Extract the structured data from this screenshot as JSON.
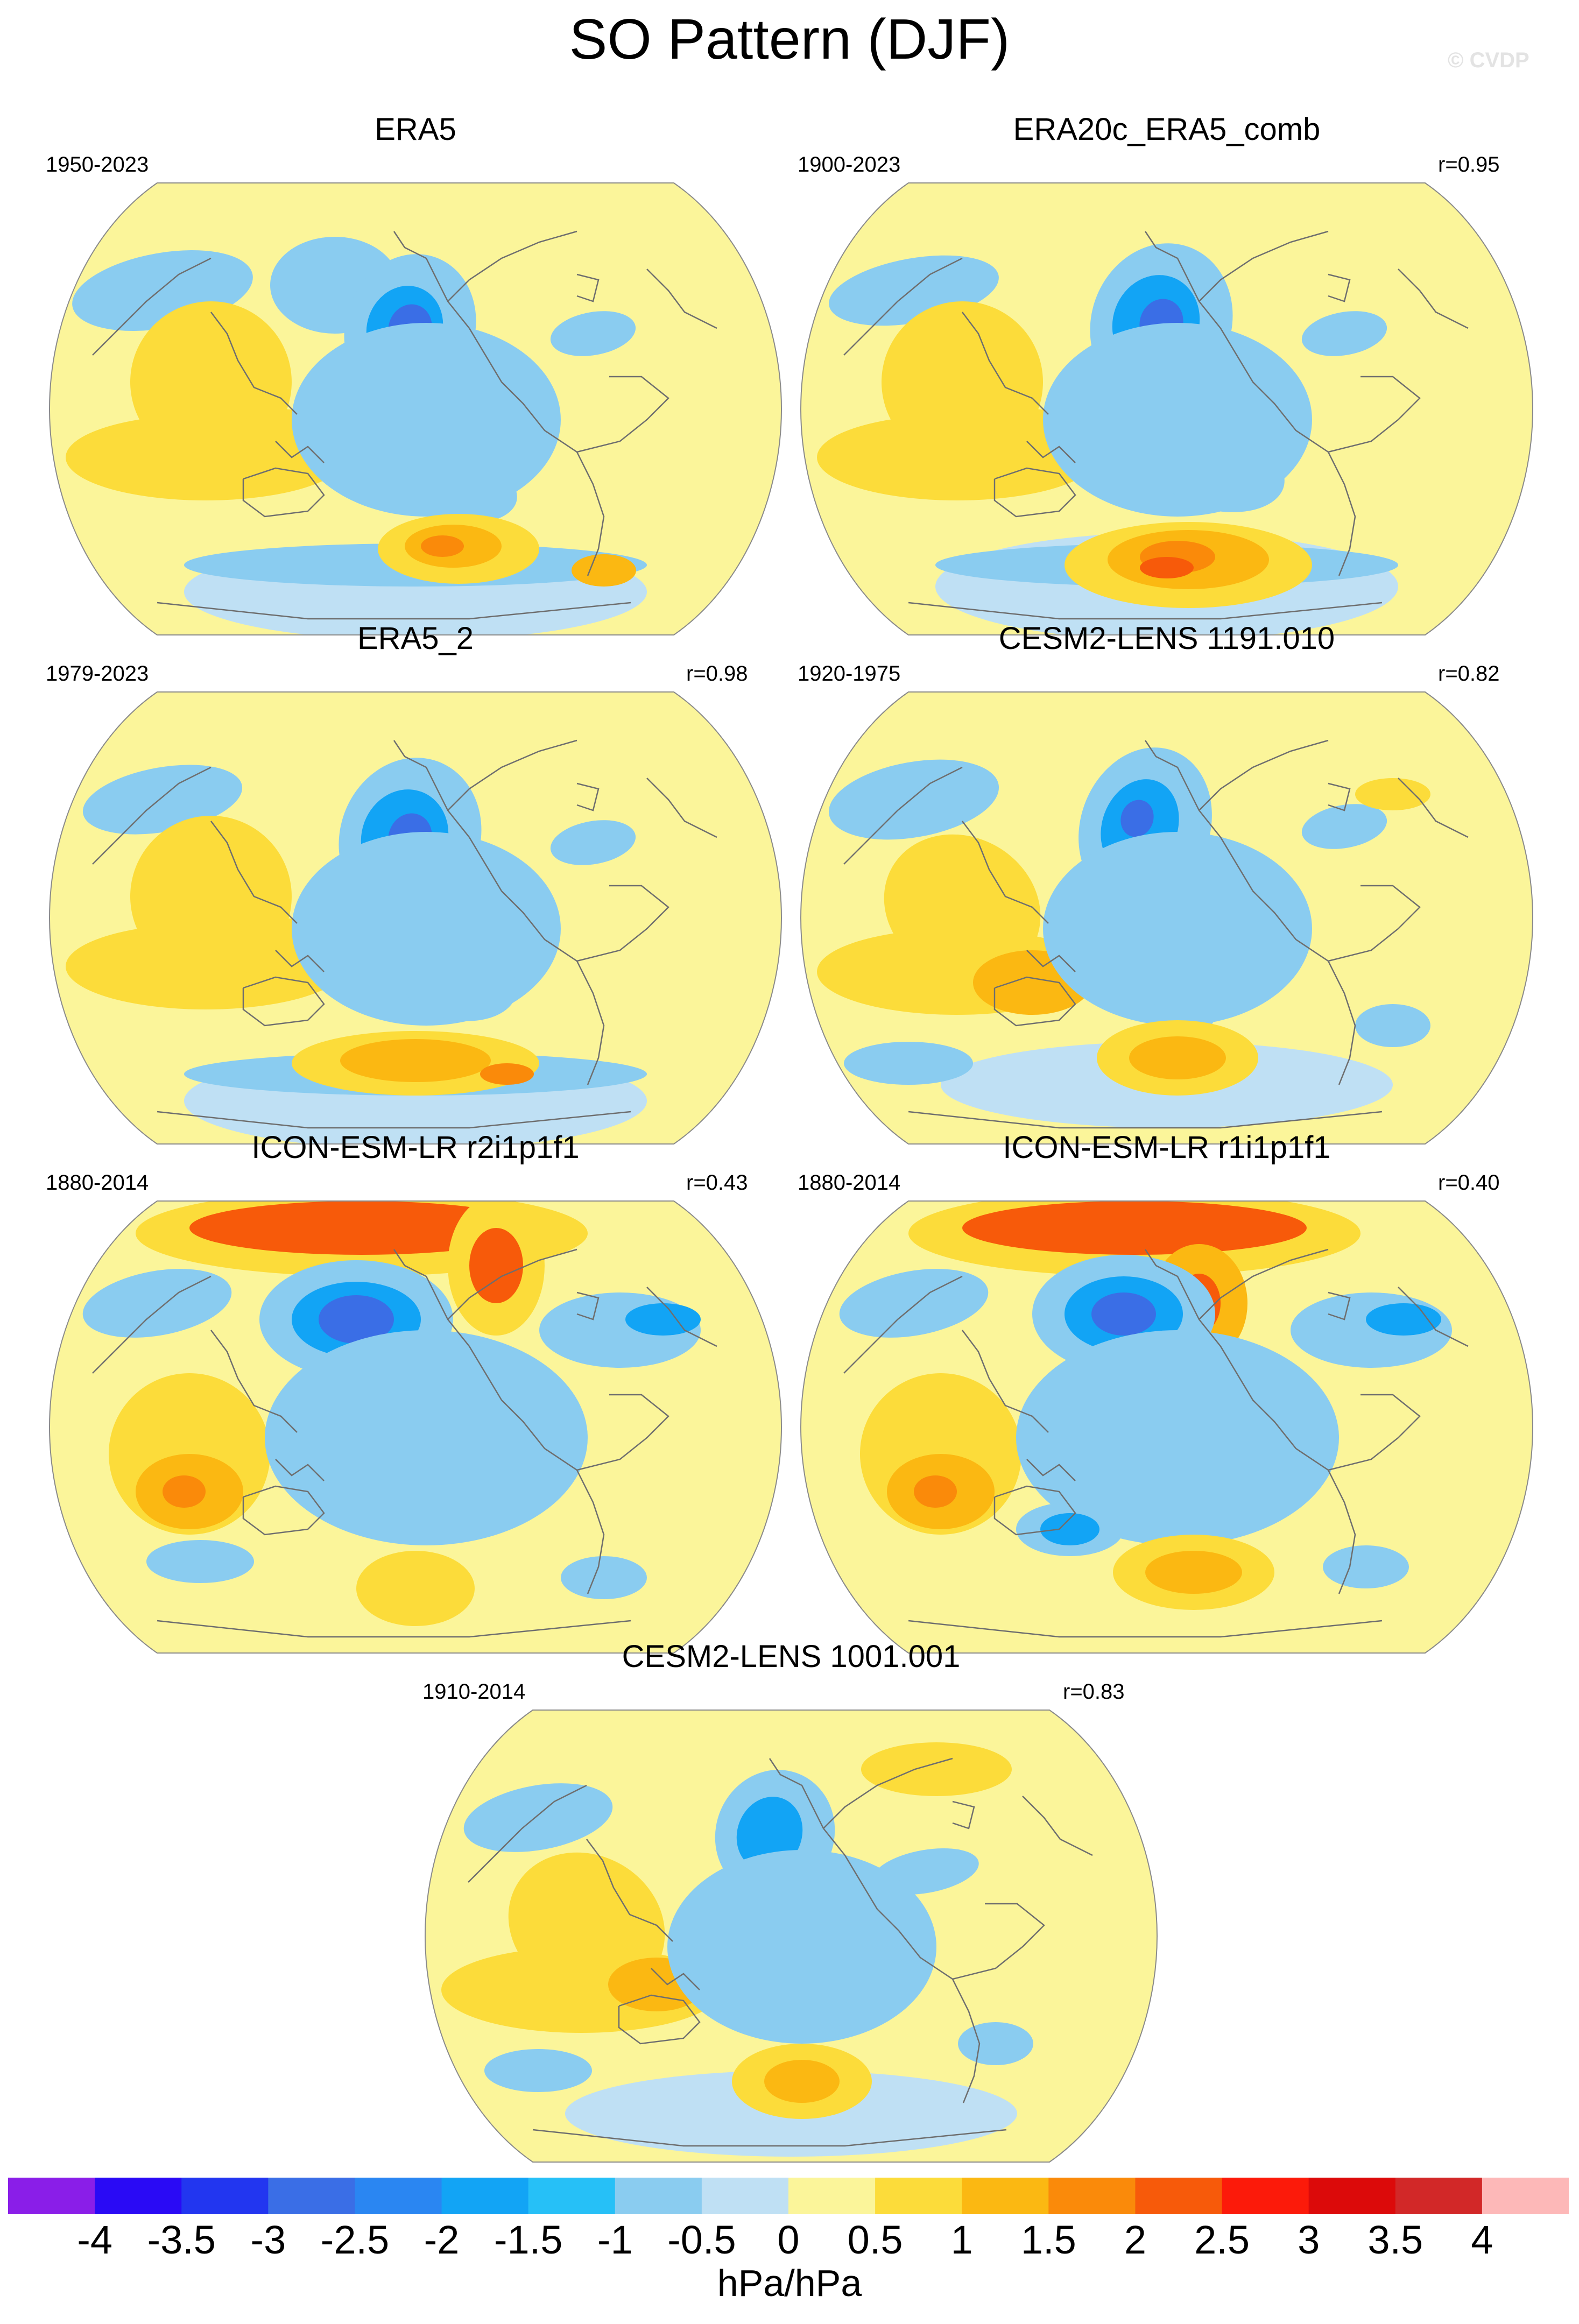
{
  "title": "SO Pattern (DJF)",
  "watermark": "© CVDP",
  "panels": [
    {
      "title": "ERA5",
      "period": "1950-2023",
      "corr": ""
    },
    {
      "title": "ERA20c_ERA5_comb",
      "period": "1900-2023",
      "corr": "r=0.95"
    },
    {
      "title": "ERA5_2",
      "period": "1979-2023",
      "corr": "r=0.98"
    },
    {
      "title": "CESM2-LENS 1191.010",
      "period": "1920-1975",
      "corr": "r=0.82"
    },
    {
      "title": "ICON-ESM-LR r2i1p1f1",
      "period": "1880-2014",
      "corr": "r=0.43"
    },
    {
      "title": "ICON-ESM-LR r1i1p1f1",
      "period": "1880-2014",
      "corr": "r=0.40"
    },
    {
      "title": "CESM2-LENS 1001.001",
      "period": "1910-2014",
      "corr": "r=0.83"
    }
  ],
  "colorbar": {
    "labels": [
      "-4",
      "-3.5",
      "-3",
      "-2.5",
      "-2",
      "-1.5",
      "-1",
      "-0.5",
      "0",
      "0.5",
      "1",
      "1.5",
      "2",
      "2.5",
      "3",
      "3.5",
      "4"
    ],
    "colors": [
      "#8a1ee8",
      "#2a0af5",
      "#2236f0",
      "#3a6ee6",
      "#2a86f2",
      "#12a4f5",
      "#26c0f7",
      "#8accf0",
      "#bfe0f4",
      "#fbf59a",
      "#fcdc3a",
      "#fbb812",
      "#fa8a0a",
      "#f75a0a",
      "#fc1a0a",
      "#dc0a0a",
      "#d22828",
      "#fdb8b8"
    ],
    "units": "hPa/hPa"
  }
}
